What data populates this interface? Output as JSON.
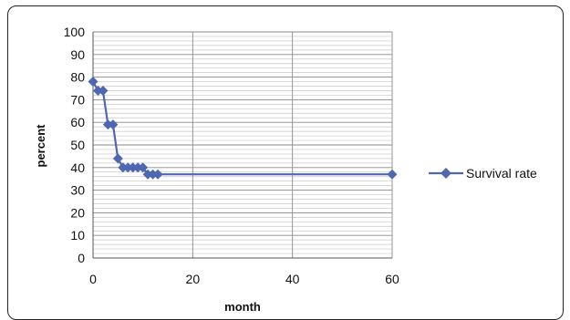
{
  "chart_data": {
    "type": "line",
    "title": "",
    "xlabel": "month",
    "ylabel": "percent",
    "xlim": [
      0,
      60
    ],
    "ylim": [
      0,
      100
    ],
    "x_ticks": [
      0,
      20,
      40,
      60
    ],
    "y_ticks": [
      0,
      10,
      20,
      30,
      40,
      50,
      60,
      70,
      80,
      90,
      100
    ],
    "grid": true,
    "legend_position": "right",
    "series": [
      {
        "name": "Survival rate",
        "color": "#4f67b1",
        "marker": "diamond",
        "points": [
          [
            0,
            78
          ],
          [
            1,
            74
          ],
          [
            2,
            74
          ],
          [
            3,
            59
          ],
          [
            4,
            59
          ],
          [
            5,
            44
          ],
          [
            6,
            40
          ],
          [
            7,
            40
          ],
          [
            8,
            40
          ],
          [
            9,
            40
          ],
          [
            10,
            40
          ],
          [
            11,
            37
          ],
          [
            12,
            37
          ],
          [
            13,
            37
          ],
          [
            60,
            37
          ]
        ]
      }
    ]
  }
}
